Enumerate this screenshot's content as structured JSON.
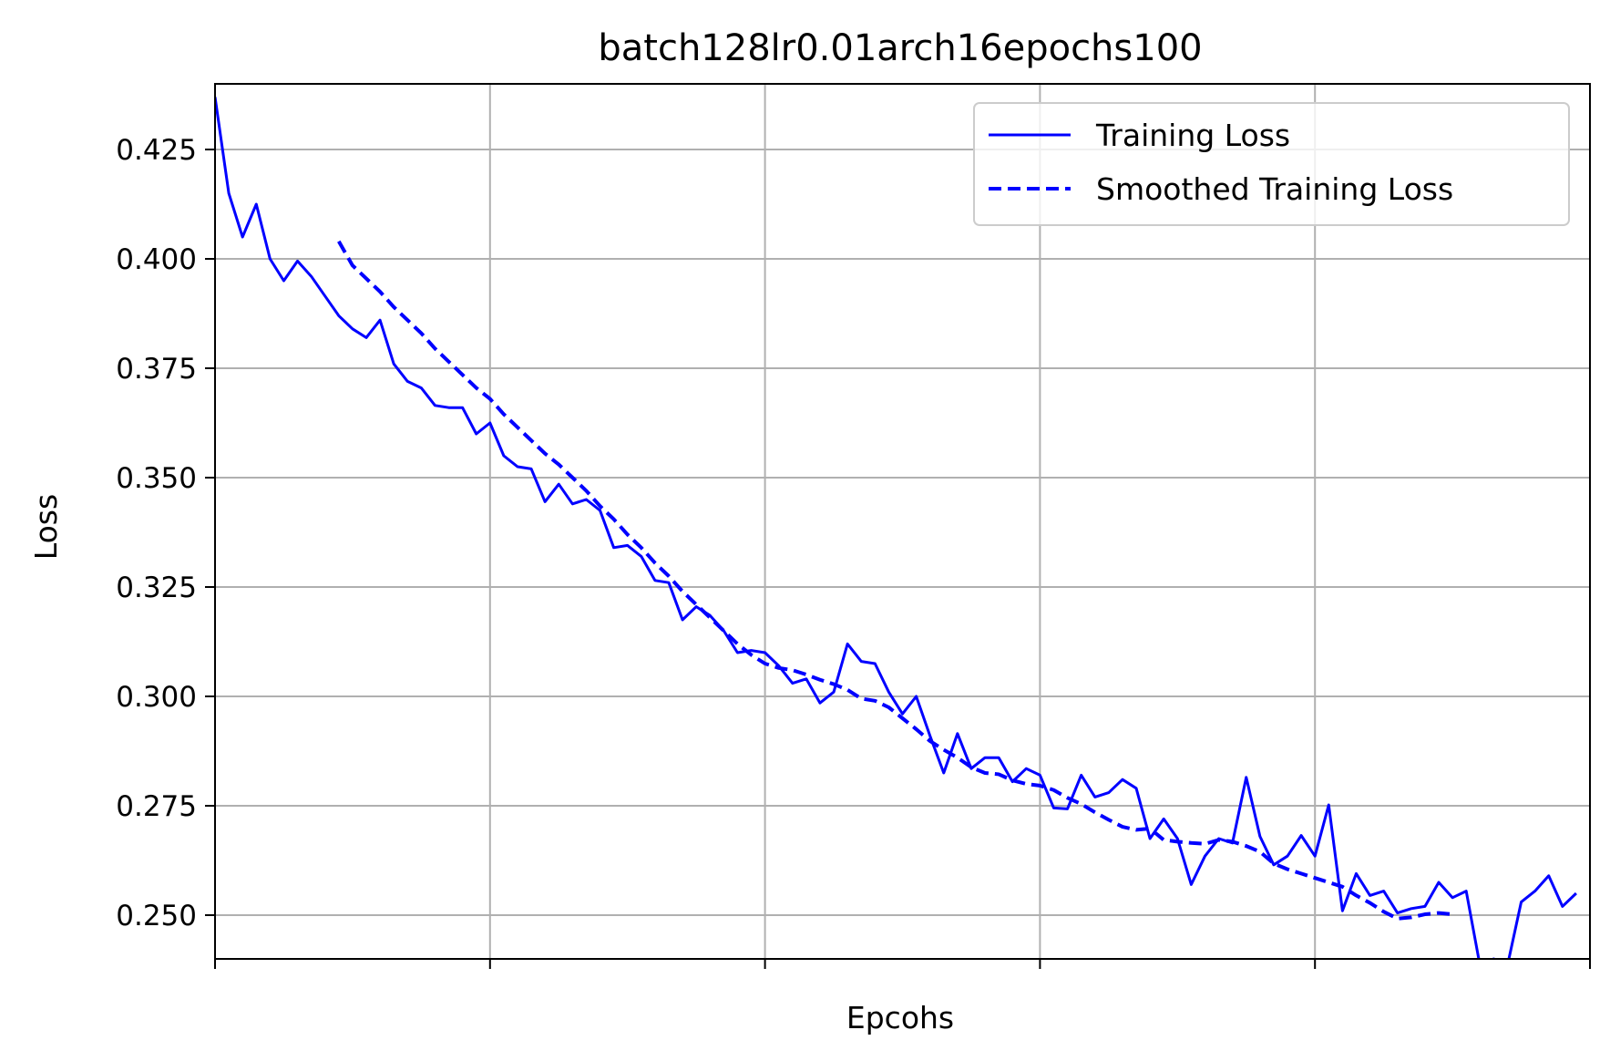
{
  "chart_data": {
    "type": "line",
    "title": "batch128lr0.01arch16epochs100",
    "xlabel": "Epcohs",
    "ylabel": "Loss",
    "xlim": [
      0,
      100
    ],
    "ylim": [
      0.24,
      0.44
    ],
    "x_ticks": [
      0,
      20,
      40,
      60,
      80,
      100
    ],
    "x_tick_labels": [
      "",
      "",
      "",
      "",
      "",
      ""
    ],
    "y_ticks": [
      0.25,
      0.275,
      0.3,
      0.325,
      0.35,
      0.375,
      0.4,
      0.425
    ],
    "y_tick_labels": [
      "0.250",
      "0.275",
      "0.300",
      "0.325",
      "0.350",
      "0.375",
      "0.400",
      "0.425"
    ],
    "grid": true,
    "legend_position": "top-right",
    "series": [
      {
        "name": "Training Loss",
        "style": "solid",
        "color": "#0000ff",
        "x_start": 0,
        "values": [
          0.437,
          0.415,
          0.405,
          0.4125,
          0.4,
          0.395,
          0.3995,
          0.396,
          0.3915,
          0.387,
          0.384,
          0.382,
          0.386,
          0.376,
          0.372,
          0.3705,
          0.3665,
          0.366,
          0.366,
          0.36,
          0.3625,
          0.355,
          0.3525,
          0.352,
          0.3445,
          0.3485,
          0.344,
          0.345,
          0.3425,
          0.334,
          0.3345,
          0.332,
          0.3265,
          0.326,
          0.3175,
          0.3205,
          0.3185,
          0.315,
          0.31,
          0.3105,
          0.31,
          0.307,
          0.303,
          0.304,
          0.2985,
          0.301,
          0.312,
          0.308,
          0.3075,
          0.301,
          0.296,
          0.3,
          0.291,
          0.2825,
          0.2915,
          0.2835,
          0.286,
          0.286,
          0.2805,
          0.2835,
          0.282,
          0.2745,
          0.2743,
          0.282,
          0.277,
          0.278,
          0.281,
          0.279,
          0.2675,
          0.272,
          0.2675,
          0.257,
          0.2635,
          0.2675,
          0.2665,
          0.2815,
          0.268,
          0.2615,
          0.2635,
          0.2682,
          0.2635,
          0.2752,
          0.251,
          0.2595,
          0.2545,
          0.2555,
          0.2505,
          0.2515,
          0.252,
          0.2575,
          0.254,
          0.2555,
          0.2385,
          0.24,
          0.2385,
          0.253,
          0.2555,
          0.259,
          0.252,
          0.255
        ]
      },
      {
        "name": "Smoothed Training Loss",
        "style": "dashed",
        "color": "#0000ff",
        "x_start": 9,
        "values": [
          0.404,
          0.3985,
          0.3955,
          0.3925,
          0.389,
          0.386,
          0.383,
          0.3795,
          0.3765,
          0.3735,
          0.3705,
          0.368,
          0.3645,
          0.3615,
          0.3585,
          0.3555,
          0.353,
          0.35,
          0.347,
          0.3435,
          0.3405,
          0.337,
          0.334,
          0.3305,
          0.3275,
          0.324,
          0.321,
          0.318,
          0.315,
          0.312,
          0.3095,
          0.3075,
          0.3065,
          0.306,
          0.305,
          0.3038,
          0.3028,
          0.3015,
          0.2995,
          0.299,
          0.2975,
          0.295,
          0.2925,
          0.2898,
          0.2878,
          0.286,
          0.2838,
          0.2825,
          0.2822,
          0.2808,
          0.28,
          0.2796,
          0.2786,
          0.2768,
          0.2754,
          0.2735,
          0.2718,
          0.2702,
          0.2695,
          0.2698,
          0.2672,
          0.2668,
          0.2665,
          0.2663,
          0.2672,
          0.2668,
          0.2658,
          0.2645,
          0.2618,
          0.2605,
          0.2595,
          0.2585,
          0.2575,
          0.2565,
          0.2545,
          0.2528,
          0.2508,
          0.2492,
          0.2495,
          0.2502,
          0.2505,
          0.2502
        ]
      }
    ]
  }
}
